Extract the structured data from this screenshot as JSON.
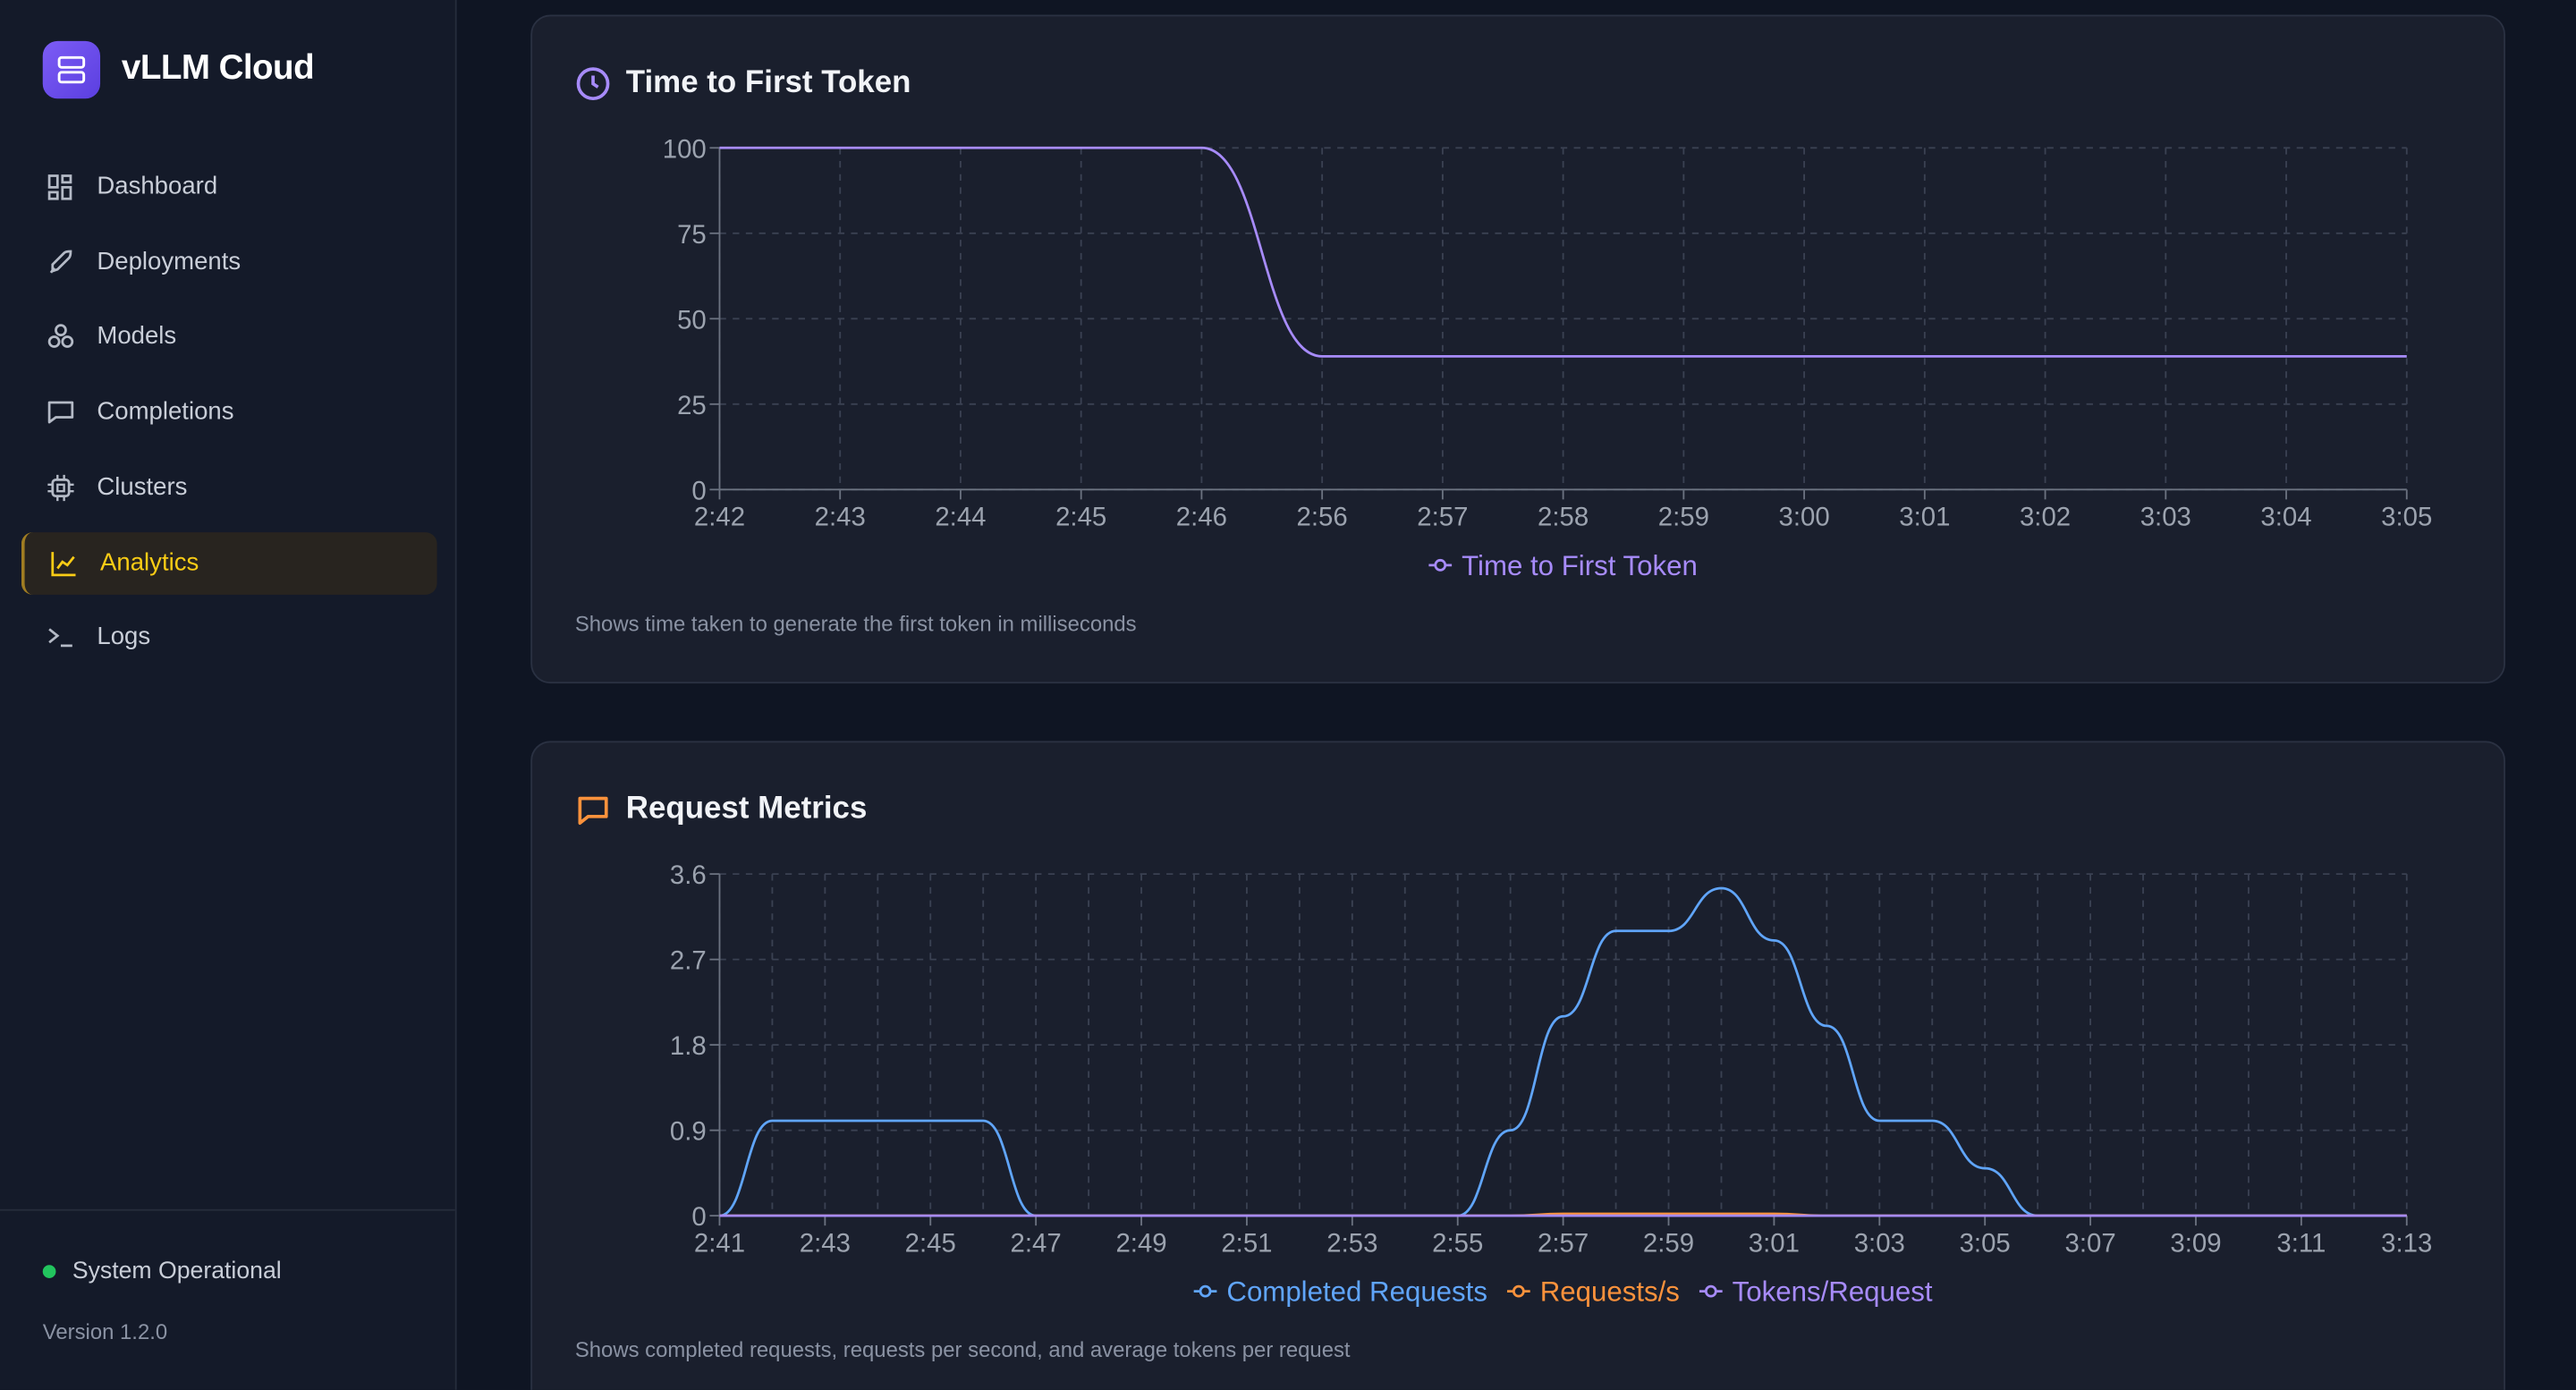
{
  "sidebar": {
    "brand": "vLLM Cloud",
    "nav": [
      "Dashboard",
      "Deployments",
      "Models",
      "Completions",
      "Clusters",
      "Analytics",
      "Logs"
    ],
    "active": 5,
    "status": "System Operational",
    "version": "Version 1.2.0"
  },
  "chart_data": [
    {
      "type": "line",
      "title": "Time to First Token",
      "note": "Shows time taken to generate the first token in milliseconds",
      "categories": [
        "2:42",
        "2:43",
        "2:44",
        "2:45",
        "2:46",
        "2:56",
        "2:57",
        "2:58",
        "2:59",
        "3:00",
        "3:01",
        "3:02",
        "3:03",
        "3:04",
        "3:05"
      ],
      "series": [
        {
          "name": "Time to First Token",
          "color": "#a78bfa",
          "values": [
            100,
            100,
            100,
            100,
            100,
            39,
            39,
            39,
            39,
            39,
            39,
            39,
            39,
            39,
            39
          ]
        }
      ],
      "ylim": [
        0,
        100
      ],
      "yticks": [
        0,
        25,
        50,
        75,
        100
      ],
      "grid": true,
      "legend": "bottom"
    },
    {
      "type": "line",
      "title": "Request Metrics",
      "note": "Shows completed requests, requests per second, and average tokens per request",
      "categories": [
        "2:41",
        null,
        "2:43",
        null,
        "2:45",
        null,
        "2:47",
        null,
        "2:49",
        null,
        "2:51",
        null,
        "2:53",
        null,
        "2:55",
        null,
        "2:57",
        null,
        "2:59",
        null,
        "3:01",
        null,
        "3:03",
        null,
        "3:05",
        null,
        "3:07",
        null,
        "3:09",
        null,
        "3:11",
        null,
        "3:13"
      ],
      "series": [
        {
          "name": "Completed Requests",
          "color": "#60a5fa",
          "values": [
            0,
            1,
            1,
            1,
            1,
            1,
            0,
            0,
            0,
            0,
            0,
            0,
            0,
            0,
            0,
            0.9,
            2.1,
            3,
            3,
            3.45,
            2.9,
            2,
            1,
            1,
            0.5,
            0,
            0,
            0,
            0,
            0,
            0,
            0,
            0
          ]
        },
        {
          "name": "Requests/s",
          "color": "#fb923c",
          "values": [
            0,
            0,
            0,
            0,
            0,
            0,
            0,
            0,
            0,
            0,
            0,
            0,
            0,
            0,
            0,
            0,
            0.02,
            0.02,
            0.02,
            0.02,
            0.02,
            0,
            0,
            0,
            0,
            0,
            0,
            0,
            0,
            0,
            0,
            0,
            0
          ]
        },
        {
          "name": "Tokens/Request",
          "color": "#a78bfa",
          "values": [
            0,
            0,
            0,
            0,
            0,
            0,
            0,
            0,
            0,
            0,
            0,
            0,
            0,
            0,
            0,
            0,
            0,
            0,
            0,
            0,
            0,
            0,
            0,
            0,
            0,
            0,
            0,
            0,
            0,
            0,
            0,
            0,
            0
          ]
        }
      ],
      "ylim": [
        0,
        3.6
      ],
      "yticks": [
        0,
        0.9,
        1.8,
        2.7,
        3.6
      ],
      "grid": true,
      "legend": "bottom"
    }
  ]
}
